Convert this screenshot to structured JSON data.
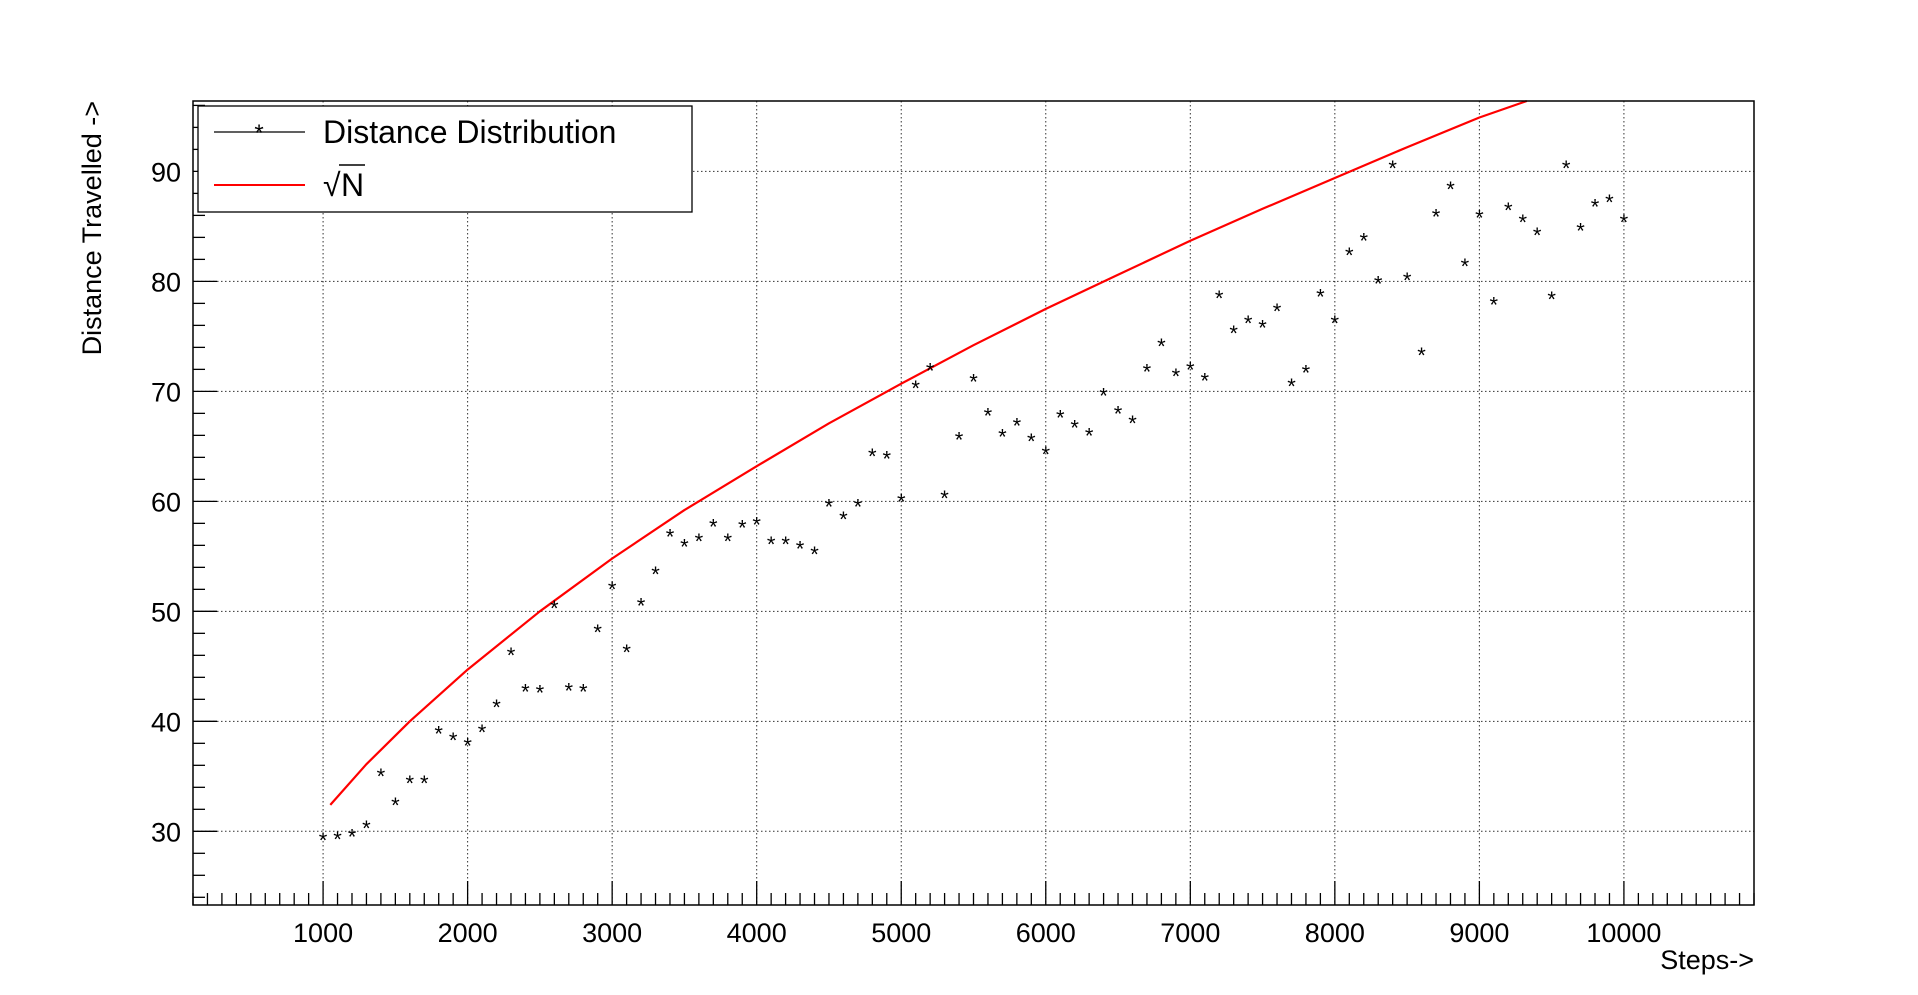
{
  "chart_data": {
    "type": "scatter",
    "title": "",
    "xlabel": "Steps->",
    "ylabel": "Distance Travelled ->",
    "xlim": [
      100,
      10900
    ],
    "ylim": [
      23.3,
      96.4
    ],
    "x_ticks": [
      1000,
      2000,
      3000,
      4000,
      5000,
      6000,
      7000,
      8000,
      9000,
      10000
    ],
    "y_ticks": [
      30,
      40,
      50,
      60,
      70,
      80,
      90
    ],
    "grid": true,
    "legend_position": "top-left",
    "legend": [
      {
        "label": "Distance Distribution",
        "marker": "star",
        "color": "#000000"
      },
      {
        "label": "N",
        "math_prefix": "√",
        "marker": "line",
        "color": "#ff0000"
      }
    ],
    "series": [
      {
        "name": "Distance Distribution",
        "kind": "scatter",
        "color": "#000000",
        "x": [
          1000,
          1100,
          1200,
          1300,
          1400,
          1500,
          1600,
          1700,
          1800,
          1900,
          2000,
          2100,
          2200,
          2300,
          2400,
          2500,
          2600,
          2700,
          2800,
          2900,
          3000,
          3100,
          3200,
          3300,
          3400,
          3500,
          3600,
          3700,
          3800,
          3900,
          4000,
          4100,
          4200,
          4300,
          4400,
          4500,
          4600,
          4700,
          4800,
          4900,
          5000,
          5100,
          5200,
          5300,
          5400,
          5500,
          5600,
          5700,
          5800,
          5900,
          6000,
          6100,
          6200,
          6300,
          6400,
          6500,
          6600,
          6700,
          6800,
          6900,
          7000,
          7100,
          7200,
          7300,
          7400,
          7500,
          7600,
          7700,
          7800,
          7900,
          8000,
          8100,
          8200,
          8300,
          8400,
          8500,
          8600,
          8700,
          8800,
          8900,
          9000,
          9100,
          9200,
          9300,
          9400,
          9500,
          9600,
          9700,
          9800,
          9900,
          10000
        ],
        "y": [
          29.3,
          29.4,
          29.6,
          30.4,
          35.1,
          32.5,
          34.5,
          34.5,
          39.0,
          38.4,
          37.9,
          39.1,
          41.4,
          46.1,
          42.8,
          42.7,
          50.4,
          42.9,
          42.8,
          48.2,
          52.1,
          46.4,
          50.6,
          53.5,
          56.9,
          56.0,
          56.5,
          57.8,
          56.5,
          57.7,
          58.0,
          56.2,
          56.2,
          55.8,
          55.3,
          59.6,
          58.5,
          59.6,
          64.2,
          64.0,
          60.1,
          70.4,
          72.0,
          60.4,
          65.7,
          71.0,
          67.9,
          66.0,
          67.0,
          65.6,
          64.4,
          67.7,
          66.8,
          66.1,
          69.7,
          68.1,
          67.2,
          71.9,
          74.2,
          71.5,
          72.1,
          71.1,
          78.6,
          75.4,
          76.3,
          75.9,
          77.4,
          70.6,
          71.8,
          78.7,
          76.3,
          82.5,
          83.8,
          79.9,
          90.4,
          80.2,
          73.4,
          86.0,
          88.5,
          81.5,
          85.9,
          78.0,
          86.6,
          85.5,
          84.3,
          78.5,
          90.4,
          84.7,
          86.9,
          87.3,
          85.5
        ]
      },
      {
        "name": "N",
        "kind": "line",
        "color": "#ff0000",
        "x": [
          1050,
          1300,
          1600,
          2000,
          2500,
          3000,
          3500,
          4000,
          4500,
          5000,
          5500,
          6000,
          6500,
          7000,
          7500,
          8000,
          8500,
          9000,
          9328
        ],
        "y": [
          32.4,
          36.1,
          40.0,
          44.7,
          50.0,
          54.8,
          59.2,
          63.2,
          67.1,
          70.7,
          74.2,
          77.5,
          80.6,
          83.7,
          86.6,
          89.4,
          92.2,
          94.9,
          96.4
        ]
      }
    ]
  }
}
